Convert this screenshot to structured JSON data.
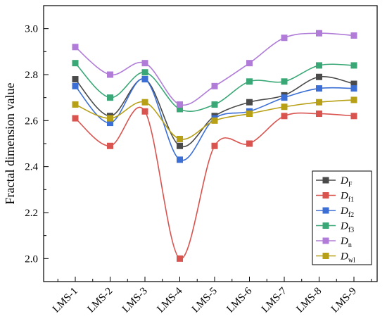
{
  "chart_data": {
    "type": "line",
    "ylabel": "Fractal dimension value",
    "xlabel": "",
    "categories": [
      "LMS-1",
      "LMS-2",
      "LMS-3",
      "LMS-4",
      "LMS-5",
      "LMS-6",
      "LMS-7",
      "LMS-8",
      "LMS-9"
    ],
    "ylim": [
      1.9,
      3.1
    ],
    "yticks": [
      "2.0",
      "2.2",
      "2.4",
      "2.6",
      "2.8",
      "3.0"
    ],
    "grid": false,
    "smooth": true,
    "legend_position": "bottom-right",
    "series": [
      {
        "name": "D",
        "sub": "F",
        "color": "#4a4a4a",
        "values": [
          2.78,
          2.62,
          2.78,
          2.49,
          2.62,
          2.68,
          2.71,
          2.79,
          2.76
        ]
      },
      {
        "name": "D",
        "sub": "f1",
        "color": "#d9534f",
        "values": [
          2.61,
          2.49,
          2.64,
          2.0,
          2.49,
          2.5,
          2.62,
          2.63,
          2.62
        ]
      },
      {
        "name": "D",
        "sub": "f2",
        "color": "#3b6fd6",
        "values": [
          2.75,
          2.59,
          2.78,
          2.43,
          2.61,
          2.64,
          2.7,
          2.74,
          2.74
        ]
      },
      {
        "name": "D",
        "sub": "f3",
        "color": "#3aa876",
        "values": [
          2.85,
          2.7,
          2.81,
          2.65,
          2.67,
          2.77,
          2.77,
          2.84,
          2.84
        ]
      },
      {
        "name": "D",
        "sub": "n",
        "color": "#b07cd8",
        "values": [
          2.92,
          2.8,
          2.85,
          2.67,
          2.75,
          2.85,
          2.96,
          2.98,
          2.97
        ]
      },
      {
        "name": "D",
        "sub": "wl",
        "color": "#b8a016",
        "values": [
          2.67,
          2.61,
          2.68,
          2.52,
          2.6,
          2.63,
          2.66,
          2.68,
          2.69
        ]
      }
    ]
  }
}
